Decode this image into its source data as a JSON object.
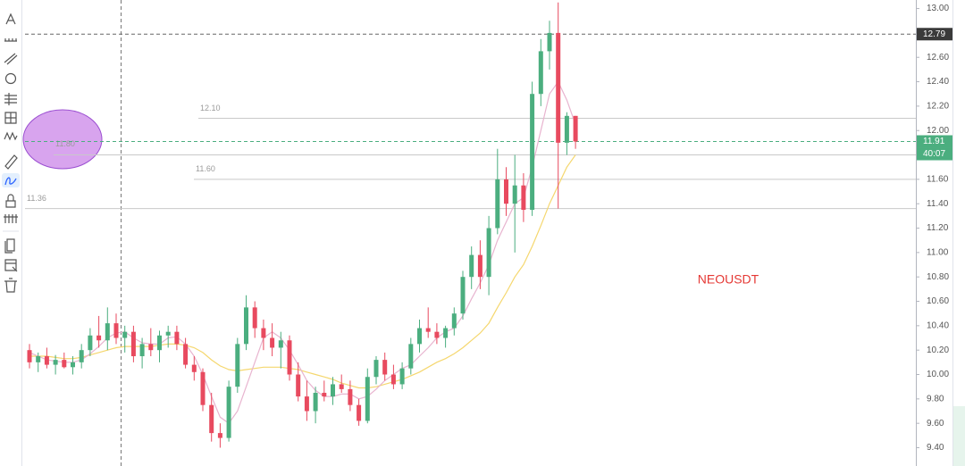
{
  "chart_data": {
    "type": "candlestick",
    "symbol": "NEOUSDT",
    "up_color": "#4bae7f",
    "down_color": "#e84a5f",
    "ohlc": [
      [
        10.2,
        10.25,
        10.05,
        10.1
      ],
      [
        10.1,
        10.18,
        10.02,
        10.15
      ],
      [
        10.15,
        10.22,
        10.05,
        10.08
      ],
      [
        10.08,
        10.16,
        10.0,
        10.12
      ],
      [
        10.12,
        10.18,
        10.05,
        10.06
      ],
      [
        10.06,
        10.15,
        10.0,
        10.1
      ],
      [
        10.1,
        10.25,
        10.05,
        10.2
      ],
      [
        10.2,
        10.38,
        10.15,
        10.32
      ],
      [
        10.32,
        10.48,
        10.22,
        10.28
      ],
      [
        10.28,
        10.55,
        10.2,
        10.42
      ],
      [
        10.42,
        10.5,
        10.25,
        10.3
      ],
      [
        10.3,
        10.4,
        10.18,
        10.35
      ],
      [
        10.35,
        10.4,
        10.1,
        10.15
      ],
      [
        10.15,
        10.3,
        10.05,
        10.25
      ],
      [
        10.25,
        10.38,
        10.15,
        10.2
      ],
      [
        10.2,
        10.36,
        10.1,
        10.32
      ],
      [
        10.32,
        10.4,
        10.22,
        10.35
      ],
      [
        10.35,
        10.4,
        10.2,
        10.25
      ],
      [
        10.25,
        10.3,
        10.05,
        10.08
      ],
      [
        10.08,
        10.15,
        9.95,
        10.02
      ],
      [
        10.02,
        10.05,
        9.7,
        9.75
      ],
      [
        9.75,
        9.85,
        9.45,
        9.52
      ],
      [
        9.52,
        9.6,
        9.4,
        9.48
      ],
      [
        9.48,
        9.95,
        9.45,
        9.9
      ],
      [
        9.9,
        10.3,
        9.85,
        10.25
      ],
      [
        10.25,
        10.65,
        10.2,
        10.55
      ],
      [
        10.55,
        10.6,
        10.3,
        10.38
      ],
      [
        10.38,
        10.45,
        10.2,
        10.3
      ],
      [
        10.3,
        10.42,
        10.15,
        10.22
      ],
      [
        10.22,
        10.35,
        10.05,
        10.28
      ],
      [
        10.28,
        10.32,
        9.95,
        10.0
      ],
      [
        10.0,
        10.1,
        9.78,
        9.82
      ],
      [
        9.82,
        9.95,
        9.62,
        9.7
      ],
      [
        9.7,
        9.9,
        9.6,
        9.85
      ],
      [
        9.85,
        9.95,
        9.78,
        9.82
      ],
      [
        9.82,
        9.98,
        9.75,
        9.92
      ],
      [
        9.92,
        10.0,
        9.85,
        9.88
      ],
      [
        9.88,
        9.95,
        9.7,
        9.75
      ],
      [
        9.75,
        9.8,
        9.58,
        9.62
      ],
      [
        9.62,
        10.05,
        9.6,
        9.98
      ],
      [
        9.98,
        10.15,
        9.92,
        10.12
      ],
      [
        10.12,
        10.18,
        9.95,
        10.0
      ],
      [
        10.0,
        10.08,
        9.88,
        9.92
      ],
      [
        9.92,
        10.1,
        9.88,
        10.05
      ],
      [
        10.05,
        10.3,
        10.0,
        10.25
      ],
      [
        10.25,
        10.45,
        10.18,
        10.38
      ],
      [
        10.38,
        10.55,
        10.3,
        10.35
      ],
      [
        10.35,
        10.42,
        10.25,
        10.3
      ],
      [
        10.3,
        10.4,
        10.22,
        10.38
      ],
      [
        10.38,
        10.55,
        10.32,
        10.5
      ],
      [
        10.5,
        10.85,
        10.45,
        10.8
      ],
      [
        10.8,
        11.05,
        10.7,
        10.98
      ],
      [
        10.98,
        11.1,
        10.7,
        10.8
      ],
      [
        10.8,
        11.3,
        10.65,
        11.2
      ],
      [
        11.2,
        11.85,
        11.15,
        11.6
      ],
      [
        11.6,
        11.7,
        11.3,
        11.4
      ],
      [
        11.4,
        11.8,
        11.0,
        11.55
      ],
      [
        11.55,
        11.65,
        11.25,
        11.35
      ],
      [
        11.35,
        12.4,
        11.3,
        12.3
      ],
      [
        12.3,
        12.75,
        12.2,
        12.65
      ],
      [
        12.65,
        12.9,
        12.5,
        12.8
      ],
      [
        12.8,
        13.05,
        11.36,
        11.9
      ],
      [
        11.9,
        12.15,
        11.8,
        12.12
      ],
      [
        12.12,
        12.12,
        11.85,
        11.91
      ]
    ],
    "overlays": [
      {
        "color": "#f5d76e",
        "values": [
          10.15,
          10.15,
          10.15,
          10.14,
          10.13,
          10.13,
          10.14,
          10.16,
          10.18,
          10.2,
          10.22,
          10.23,
          10.23,
          10.23,
          10.23,
          10.24,
          10.25,
          10.25,
          10.24,
          10.22,
          10.18,
          10.12,
          10.07,
          10.04,
          10.03,
          10.04,
          10.05,
          10.06,
          10.06,
          10.06,
          10.05,
          10.04,
          10.02,
          10.0,
          9.98,
          9.96,
          9.93,
          9.91,
          9.89,
          9.89,
          9.9,
          9.92,
          9.94,
          9.96,
          9.99,
          10.02,
          10.06,
          10.1,
          10.13,
          10.17,
          10.22,
          10.28,
          10.34,
          10.42,
          10.55,
          10.67,
          10.8,
          10.9,
          11.05,
          11.22,
          11.4,
          11.55,
          11.7,
          11.8
        ]
      },
      {
        "color": "#e8b4cf",
        "values": [
          10.18,
          10.15,
          10.12,
          10.11,
          10.1,
          10.1,
          10.12,
          10.17,
          10.23,
          10.3,
          10.34,
          10.35,
          10.3,
          10.26,
          10.25,
          10.25,
          10.3,
          10.31,
          10.25,
          10.15,
          10.0,
          9.82,
          9.65,
          9.6,
          9.7,
          9.9,
          10.1,
          10.3,
          10.35,
          10.3,
          10.2,
          10.08,
          9.95,
          9.87,
          9.82,
          9.82,
          9.84,
          9.84,
          9.8,
          9.82,
          9.88,
          9.95,
          10.0,
          10.05,
          10.08,
          10.15,
          10.22,
          10.3,
          10.35,
          10.38,
          10.48,
          10.62,
          10.75,
          10.9,
          11.1,
          11.25,
          11.4,
          11.45,
          11.7,
          12.0,
          12.3,
          12.4,
          12.25,
          12.05
        ]
      }
    ],
    "ylim": [
      9.25,
      13.07
    ],
    "yticks": [
      {
        "value": 9.4,
        "label": "9.40"
      },
      {
        "value": 9.6,
        "label": "9.60"
      },
      {
        "value": 9.8,
        "label": "9.80"
      },
      {
        "value": 10,
        "label": "10.00"
      },
      {
        "value": 10.2,
        "label": "10.20"
      },
      {
        "value": 10.4,
        "label": "10.40"
      },
      {
        "value": 10.6,
        "label": "10.60"
      },
      {
        "value": 10.8,
        "label": "10.80"
      },
      {
        "value": 11,
        "label": "11.00"
      },
      {
        "value": 11.2,
        "label": "11.20"
      },
      {
        "value": 11.4,
        "label": "11.40"
      },
      {
        "value": 11.6,
        "label": "11.60"
      },
      {
        "value": 11.8,
        "label": "11.80"
      },
      {
        "value": 12,
        "label": "12.00"
      },
      {
        "value": 12.2,
        "label": "12.20"
      },
      {
        "value": 12.4,
        "label": "12.40"
      },
      {
        "value": 12.6,
        "label": "12.60"
      },
      {
        "value": 12.8,
        "label": "12.80"
      },
      {
        "value": 13,
        "label": "13.00"
      }
    ],
    "levels": [
      {
        "value": 12.1,
        "label": "12.10"
      },
      {
        "value": 11.6,
        "label": "11.60"
      },
      {
        "value": 11.36,
        "label": "11.36"
      },
      {
        "value": 11.8,
        "label": "11.80"
      }
    ],
    "price_labels": [
      {
        "value": 12.79,
        "color": "#3a3a3a"
      },
      {
        "value": 11.91,
        "color": "#4bae7f"
      }
    ],
    "countdown": "40:07"
  }
}
